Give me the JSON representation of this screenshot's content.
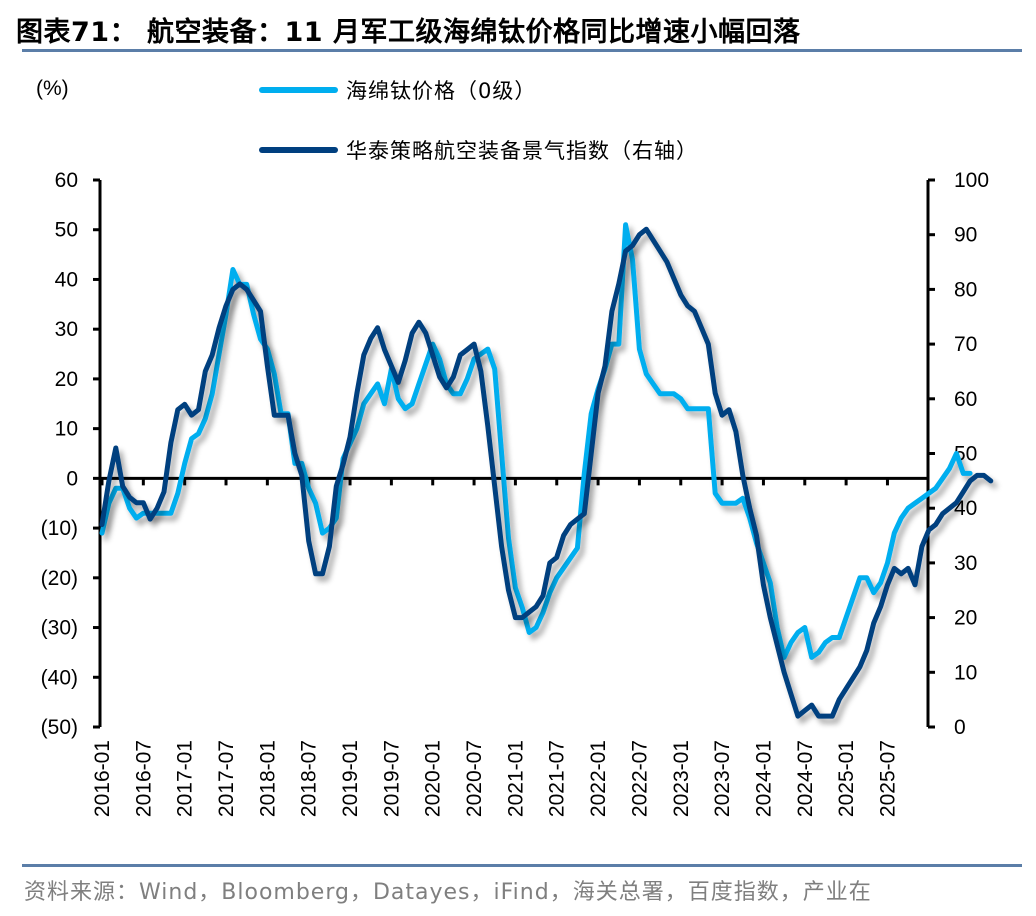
{
  "header": {
    "title": "图表71： 航空装备：11 月军工级海绵钛价格同比增速小幅回落"
  },
  "footer": {
    "source": "资料来源：Wind，Bloomberg，Datayes，iFind，海关总署，百度指数，产业在"
  },
  "colors": {
    "series_light": "#00aeef",
    "series_dark": "#003f7f",
    "rule": "#5b7ea8",
    "axis": "#000000"
  },
  "chart_data": {
    "type": "line",
    "title": "航空装备：11 月军工级海绵钛价格同比增速小幅回落",
    "left_axis_unit": "(%)",
    "ylim_left": [
      -50,
      60
    ],
    "ylim_right": [
      0,
      100
    ],
    "yticks_left": [
      "60",
      "50",
      "40",
      "30",
      "20",
      "10",
      "0",
      "(10)",
      "(20)",
      "(30)",
      "(40)",
      "(50)"
    ],
    "yticks_left_values": [
      60,
      50,
      40,
      30,
      20,
      10,
      0,
      -10,
      -20,
      -30,
      -40,
      -50
    ],
    "yticks_right": [
      "100",
      "90",
      "80",
      "70",
      "60",
      "50",
      "40",
      "30",
      "20",
      "10",
      "0"
    ],
    "yticks_right_values": [
      100,
      90,
      80,
      70,
      60,
      50,
      40,
      30,
      20,
      10,
      0
    ],
    "xtick_labels": [
      "2016-01",
      "2016-07",
      "2017-01",
      "2017-07",
      "2018-01",
      "2018-07",
      "2019-01",
      "2019-07",
      "2020-01",
      "2020-07",
      "2021-01",
      "2021-07",
      "2022-01",
      "2022-07",
      "2023-01",
      "2023-07",
      "2024-01",
      "2024-07",
      "2025-01",
      "2025-07"
    ],
    "x_start": "2016-01",
    "x_frequency": "monthly",
    "legend": "top-center",
    "series": [
      {
        "name": "海绵钛价格（0级）",
        "axis": "left",
        "values": [
          -11,
          -5,
          -2,
          -2,
          -6,
          -8,
          -7,
          -7,
          -7,
          -7,
          -7,
          -3,
          3,
          8,
          9,
          12,
          17,
          25,
          33,
          42,
          39,
          39,
          33,
          28,
          26,
          21,
          13,
          13,
          3,
          3,
          -2,
          -5,
          -11,
          -10,
          -8,
          4,
          7,
          10,
          15,
          17,
          19,
          15,
          22,
          16,
          14,
          15,
          19,
          23,
          27,
          24,
          19,
          17,
          17,
          20,
          24,
          25,
          26,
          22,
          5,
          -12,
          -22,
          -26,
          -31,
          -30,
          -27,
          -23,
          -20,
          -18,
          -16,
          -14,
          1,
          13,
          18,
          22,
          27,
          27,
          51,
          44,
          26,
          21,
          19,
          17,
          17,
          17,
          16,
          14,
          14,
          14,
          14,
          -3,
          -5,
          -5,
          -5,
          -4,
          -8,
          -13,
          -17,
          -21,
          -30,
          -36,
          -33,
          -31,
          -30,
          -36,
          -35,
          -33,
          -32,
          -32,
          -28,
          -24,
          -20,
          -20,
          -23,
          -21,
          -17,
          -11,
          -8,
          -6,
          -5,
          -4,
          -3,
          -2,
          0,
          2,
          5,
          1,
          1
        ]
      },
      {
        "name": "华泰策略航空装备景气指数（右轴）",
        "axis": "right",
        "values": [
          37,
          45,
          51,
          44,
          42,
          41,
          41,
          38,
          40,
          43,
          52,
          58,
          59,
          57,
          58,
          65,
          68,
          73,
          77,
          80,
          81,
          80,
          78,
          76,
          66,
          57,
          57,
          57,
          50,
          46,
          34,
          28,
          28,
          33,
          44,
          48,
          53,
          61,
          68,
          71,
          73,
          69,
          66,
          63,
          67,
          72,
          74,
          72,
          68,
          64,
          62,
          64,
          68,
          69,
          70,
          65,
          55,
          44,
          33,
          25,
          20,
          20,
          21,
          22,
          24,
          30,
          31,
          35,
          37,
          38,
          39,
          50,
          61,
          66,
          76,
          81,
          87,
          88,
          90,
          91,
          89,
          87,
          85,
          82,
          79,
          77,
          76,
          73,
          70,
          61,
          57,
          58,
          54,
          46,
          40,
          35,
          26,
          20,
          15,
          10,
          6,
          2,
          3,
          4,
          2,
          2,
          2,
          5,
          7,
          9,
          11,
          14,
          19,
          22,
          26,
          29,
          28,
          29,
          26,
          33,
          36,
          37,
          39,
          40,
          41,
          43,
          45,
          46,
          46,
          45
        ]
      }
    ]
  }
}
